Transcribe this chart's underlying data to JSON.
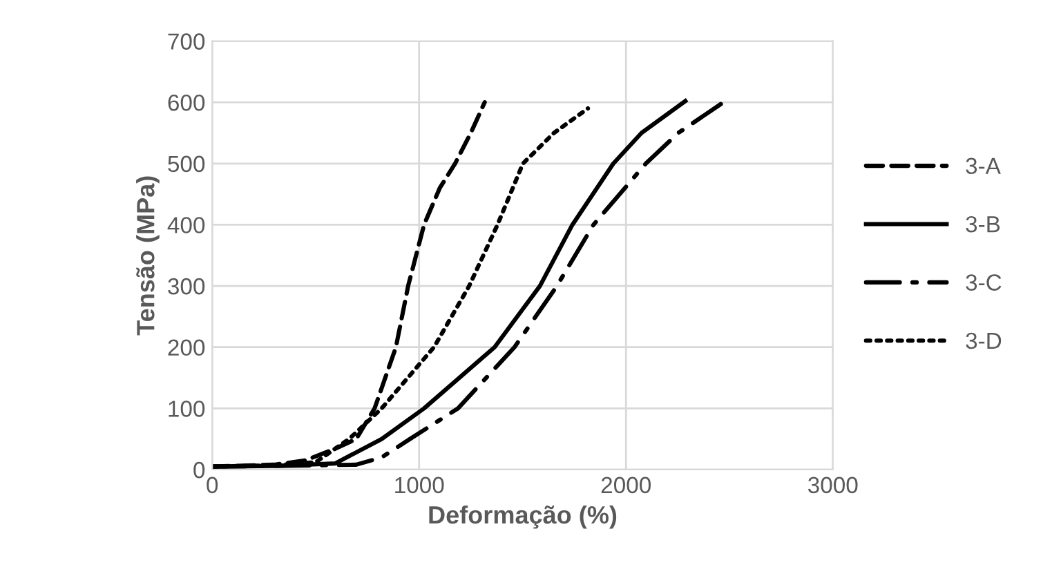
{
  "chart_data": {
    "type": "line",
    "xlabel": "Deformação (%)",
    "ylabel": "Tensão (MPa)",
    "xlim": [
      0,
      3000
    ],
    "ylim": [
      0,
      700
    ],
    "xticks": [
      0,
      1000,
      2000,
      3000
    ],
    "yticks": [
      0,
      100,
      200,
      300,
      400,
      500,
      600,
      700
    ],
    "grid": true,
    "legend": "right",
    "marker": "none",
    "series": [
      {
        "name": "3-A",
        "color": "#000000",
        "line_style": "dashed",
        "x": [
          0,
          300,
          450,
          600,
          696,
          785,
          888,
          947,
          1024,
          1100,
          1174,
          1250,
          1317
        ],
        "values": [
          5,
          8,
          15,
          35,
          50,
          100,
          200,
          300,
          400,
          460,
          500,
          550,
          600
        ]
      },
      {
        "name": "3-B",
        "color": "#000000",
        "line_style": "solid",
        "x": [
          0,
          300,
          594,
          819,
          1024,
          1365,
          1584,
          1741,
          1939,
          2075,
          2287
        ],
        "values": [
          5,
          6,
          10,
          50,
          100,
          200,
          300,
          400,
          500,
          550,
          602
        ]
      },
      {
        "name": "3-C",
        "color": "#000000",
        "line_style": "dashdot",
        "x": [
          0,
          300,
          696,
          819,
          956,
          1188,
          1461,
          1666,
          1843,
          2096,
          2253,
          2471
        ],
        "values": [
          5,
          6,
          8,
          20,
          50,
          100,
          200,
          300,
          400,
          500,
          550,
          600
        ]
      },
      {
        "name": "3-D",
        "color": "#000000",
        "line_style": "dotted",
        "x": [
          0,
          300,
          500,
          662,
          819,
          1072,
          1242,
          1379,
          1502,
          1652,
          1816
        ],
        "values": [
          5,
          7,
          12,
          50,
          100,
          200,
          300,
          400,
          500,
          550,
          590
        ]
      }
    ]
  }
}
